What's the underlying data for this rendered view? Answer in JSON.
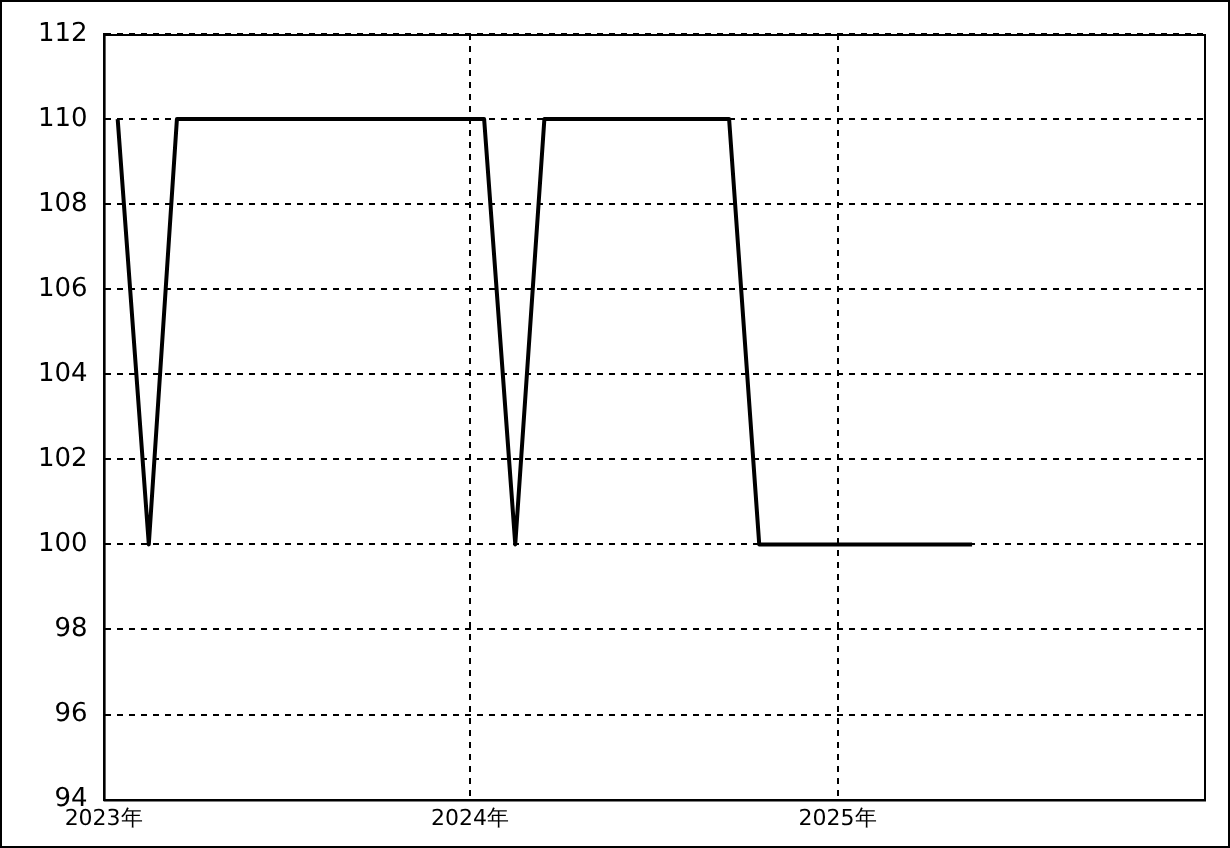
{
  "chart_data": {
    "type": "line",
    "x": [
      "2023-01-15",
      "2023-02-15",
      "2023-03-15",
      "2023-04-15",
      "2023-05-15",
      "2023-06-15",
      "2023-07-15",
      "2023-08-15",
      "2023-09-15",
      "2023-10-15",
      "2023-11-15",
      "2023-12-15",
      "2024-01-15",
      "2024-02-15",
      "2024-03-15",
      "2024-04-15",
      "2024-05-15",
      "2024-06-15",
      "2024-07-15",
      "2024-08-15",
      "2024-09-15",
      "2024-10-15",
      "2024-11-15",
      "2024-12-15",
      "2025-01-15",
      "2025-02-15",
      "2025-03-15",
      "2025-04-15",
      "2025-05-15"
    ],
    "series": [
      {
        "color": "#000000",
        "values": [
          110,
          100,
          110,
          110,
          110,
          110,
          110,
          110,
          110,
          110,
          110,
          110,
          110,
          100,
          110,
          110,
          110,
          110,
          110,
          110,
          110,
          100,
          100,
          100,
          100,
          100,
          100,
          100,
          100
        ]
      }
    ],
    "xlim": [
      "2023-01",
      "2026-01"
    ],
    "xticks": [
      {
        "value": "2023",
        "label": "2023年"
      },
      {
        "value": "2024",
        "label": "2024年"
      },
      {
        "value": "2025",
        "label": "2025年"
      }
    ],
    "ylim": [
      94,
      112
    ],
    "yticks": [
      94,
      96,
      98,
      100,
      102,
      104,
      106,
      108,
      110,
      112
    ],
    "grid": true,
    "legend": false,
    "marker": "none",
    "line_style": "solid"
  }
}
